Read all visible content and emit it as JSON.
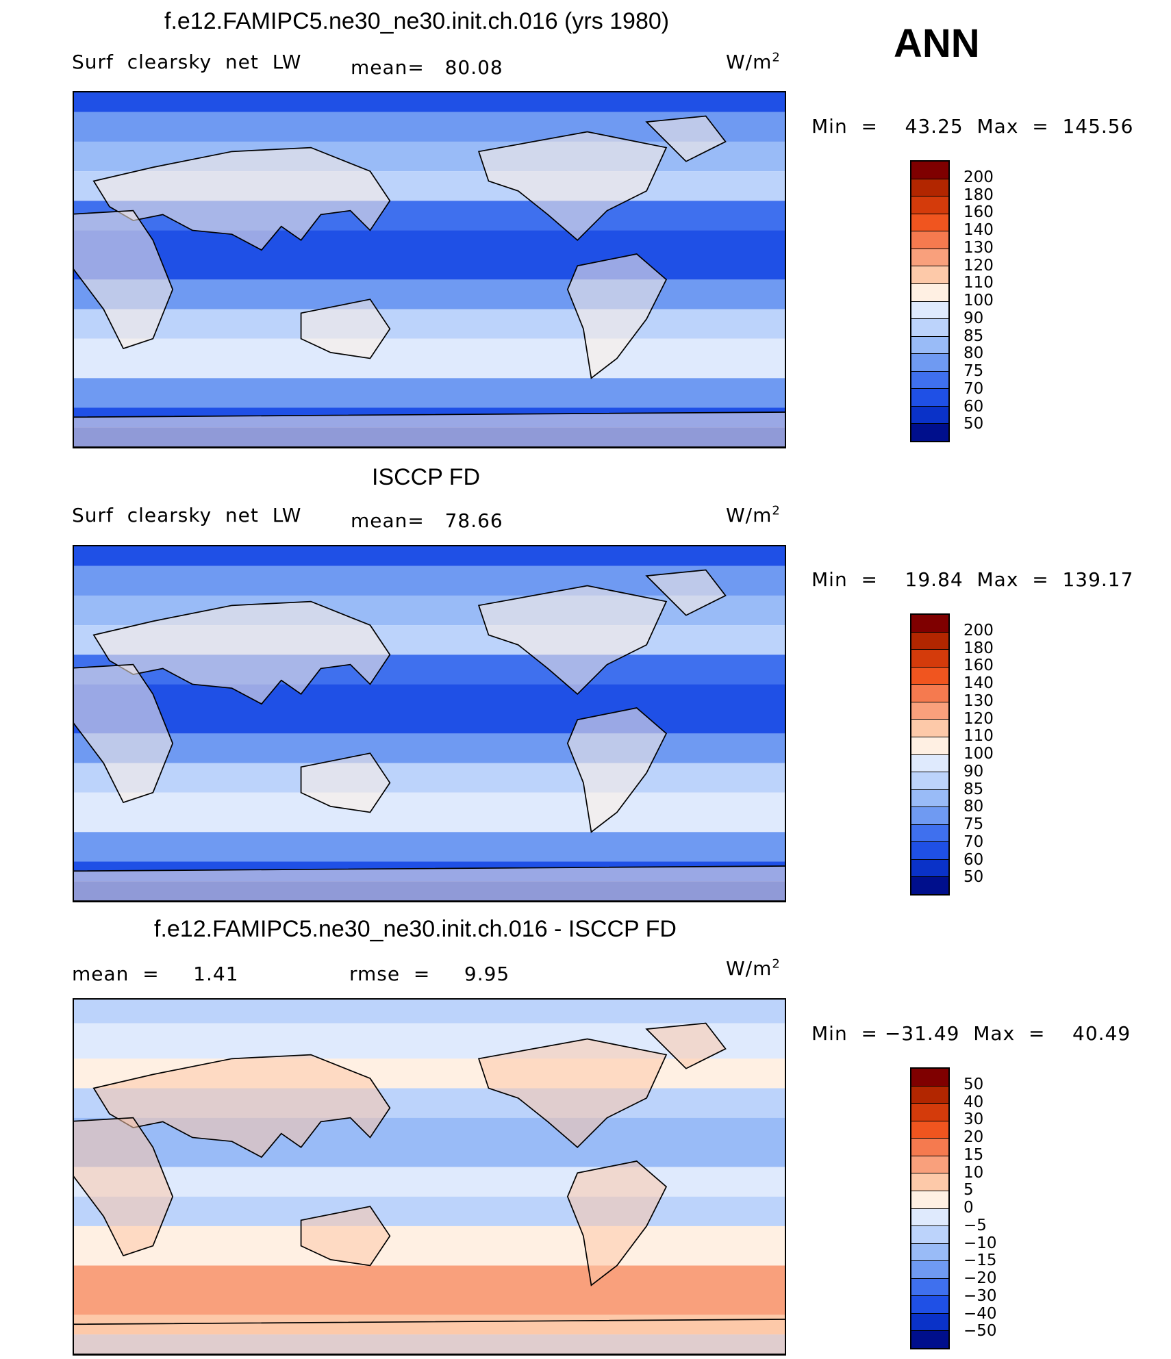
{
  "season": "ANN",
  "panels": [
    {
      "title": "f.e12.FAMIPC5.ne30_ne30.init.ch.016 (yrs 1980)",
      "left_label": "Surf  clearsky  net  LW",
      "mean_label": "mean=   80.08",
      "units_base": "W/m",
      "units_exp": "2",
      "minmax": "Min  =    43.25  Max  =  145.56",
      "levels": [
        "200",
        "180",
        "160",
        "140",
        "130",
        "120",
        "110",
        "100",
        "90",
        "85",
        "80",
        "75",
        "70",
        "60",
        "50"
      ],
      "colors": [
        "#7f0000",
        "#b22600",
        "#d43b0b",
        "#f0551f",
        "#f57a4f",
        "#f9a07c",
        "#fdc9a9",
        "#fff0e3",
        "#dfeafd",
        "#bcd3fb",
        "#99bbf7",
        "#6f9af2",
        "#3f70ee",
        "#1f50e6",
        "#0a32c8",
        "#000f8c"
      ]
    },
    {
      "title": "ISCCP FD",
      "left_label": "Surf  clearsky  net  LW",
      "mean_label": "mean=   78.66",
      "units_base": "W/m",
      "units_exp": "2",
      "minmax": "Min  =    19.84  Max  =  139.17",
      "levels": [
        "200",
        "180",
        "160",
        "140",
        "130",
        "120",
        "110",
        "100",
        "90",
        "85",
        "80",
        "75",
        "70",
        "60",
        "50"
      ],
      "colors": [
        "#7f0000",
        "#b22600",
        "#d43b0b",
        "#f0551f",
        "#f57a4f",
        "#f9a07c",
        "#fdc9a9",
        "#fff0e3",
        "#dfeafd",
        "#bcd3fb",
        "#99bbf7",
        "#6f9af2",
        "#3f70ee",
        "#1f50e6",
        "#0a32c8",
        "#000f8c"
      ]
    },
    {
      "title": "f.e12.FAMIPC5.ne30_ne30.init.ch.016 - ISCCP FD",
      "left_label": "mean  =     1.41",
      "mean_label": "rmse  =     9.95",
      "units_base": "W/m",
      "units_exp": "2",
      "minmax": "Min  = −31.49  Max  =    40.49",
      "levels": [
        "50",
        "40",
        "30",
        "20",
        "15",
        "10",
        "5",
        "0",
        "−5",
        "−10",
        "−15",
        "−20",
        "−30",
        "−40",
        "−50"
      ],
      "colors": [
        "#7f0000",
        "#b22600",
        "#d43b0b",
        "#f0551f",
        "#f57a4f",
        "#f9a07c",
        "#fdc9a9",
        "#fff0e3",
        "#dfeafd",
        "#bcd3fb",
        "#99bbf7",
        "#6f9af2",
        "#3f70ee",
        "#1f50e6",
        "#0a32c8",
        "#000f8c"
      ]
    }
  ],
  "chart_data": [
    {
      "type": "heatmap",
      "title": "f.e12.FAMIPC5.ne30_ne30.init.ch.016 (yrs 1980)",
      "variable": "Surf clearsky net LW",
      "units": "W/m2",
      "mean": 80.08,
      "min": 43.25,
      "max": 145.56,
      "contour_levels": [
        50,
        60,
        70,
        75,
        80,
        85,
        90,
        100,
        110,
        120,
        130,
        140,
        160,
        180,
        200
      ]
    },
    {
      "type": "heatmap",
      "title": "ISCCP FD",
      "variable": "Surf clearsky net LW",
      "units": "W/m2",
      "mean": 78.66,
      "min": 19.84,
      "max": 139.17,
      "contour_levels": [
        50,
        60,
        70,
        75,
        80,
        85,
        90,
        100,
        110,
        120,
        130,
        140,
        160,
        180,
        200
      ]
    },
    {
      "type": "heatmap",
      "title": "f.e12.FAMIPC5.ne30_ne30.init.ch.016 - ISCCP FD",
      "units": "W/m2",
      "mean": 1.41,
      "rmse": 9.95,
      "min": -31.49,
      "max": 40.49,
      "contour_levels": [
        -50,
        -40,
        -30,
        -20,
        -15,
        -10,
        -5,
        0,
        5,
        10,
        15,
        20,
        30,
        40,
        50
      ]
    }
  ]
}
